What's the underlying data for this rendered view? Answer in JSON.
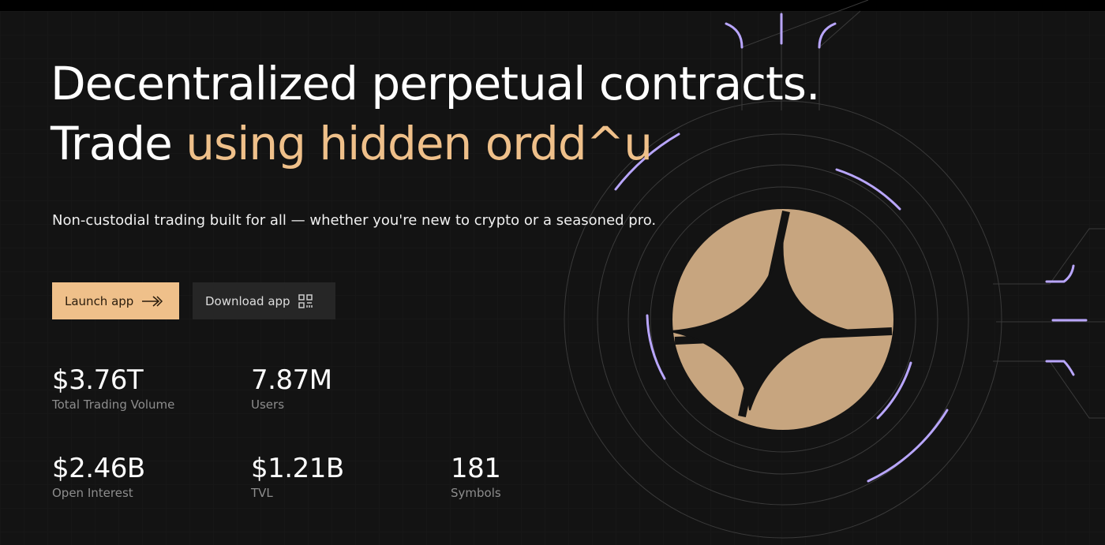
{
  "hero": {
    "title_line1": "Decentralized perpetual contracts.",
    "title_line2_prefix": "Trade ",
    "title_line2_highlight": "using hidden ordd^u",
    "subtitle": "Non-custodial trading built for all — whether you're new to crypto or a seasoned pro."
  },
  "buttons": {
    "launch": "Launch app",
    "download": "Download app"
  },
  "icons": {
    "launch": "arrow-right-icon",
    "download": "qr-code-icon",
    "art": "star-logo-icon"
  },
  "stats": [
    {
      "value": "$3.76T",
      "label": "Total Trading Volume"
    },
    {
      "value": "7.87M",
      "label": "Users"
    },
    {
      "value": "$2.46B",
      "label": "Open Interest"
    },
    {
      "value": "$1.21B",
      "label": "TVL"
    },
    {
      "value": "181",
      "label": "Symbols"
    }
  ],
  "colors": {
    "accent": "#efc08a",
    "glow": "#b9a6ff",
    "background": "#131313"
  }
}
